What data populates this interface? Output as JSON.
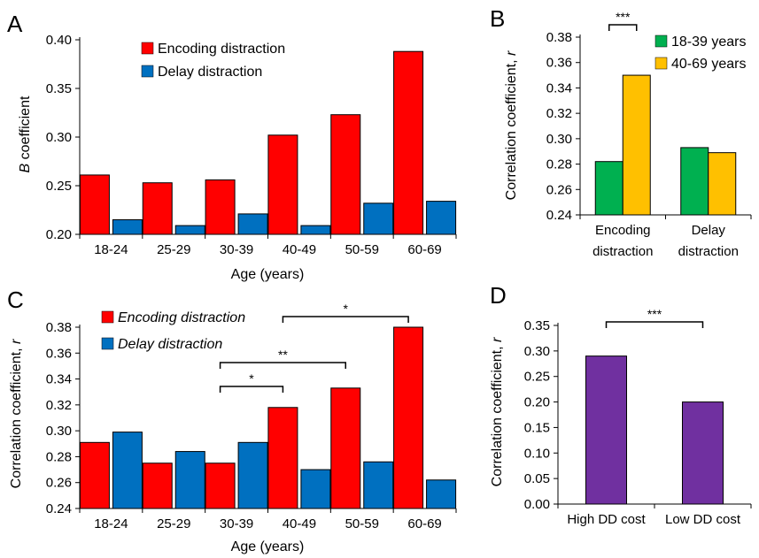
{
  "chart_data": [
    {
      "panel": "A",
      "type": "bar",
      "categories": [
        "18-24",
        "25-29",
        "30-39",
        "40-49",
        "50-59",
        "60-69"
      ],
      "series": [
        {
          "name": "Encoding distraction",
          "color": "#ff0000",
          "values": [
            0.261,
            0.253,
            0.256,
            0.302,
            0.323,
            0.388
          ]
        },
        {
          "name": "Delay distraction",
          "color": "#0070c0",
          "values": [
            0.215,
            0.209,
            0.221,
            0.209,
            0.232,
            0.234
          ]
        }
      ],
      "xlabel": "Age (years)",
      "ylabel_italic": "B",
      "ylabel_rest": " coefficient",
      "ylim": [
        0.2,
        0.4
      ],
      "yticks": [
        "0.20",
        "0.25",
        "0.30",
        "0.35",
        "0.40"
      ],
      "legend_position": "top-left",
      "legend_italic": false,
      "brackets": []
    },
    {
      "panel": "B",
      "type": "bar",
      "categories": [
        [
          "Encoding",
          "distraction"
        ],
        [
          "Delay",
          "distraction"
        ]
      ],
      "series": [
        {
          "name": "18-39 years",
          "color": "#00b050",
          "values": [
            0.282,
            0.293
          ]
        },
        {
          "name": "40-69 years",
          "color": "#ffc000",
          "values": [
            0.35,
            0.289
          ]
        }
      ],
      "xlabel": "",
      "ylabel_prefix": "Correlation coefficient, ",
      "ylabel_italic": "r",
      "ylim": [
        0.24,
        0.38
      ],
      "yticks": [
        "0.24",
        "0.26",
        "0.28",
        "0.30",
        "0.32",
        "0.34",
        "0.36",
        "0.38"
      ],
      "legend_position": "top-right",
      "legend_italic": false,
      "brackets": [
        {
          "from": [
            0,
            0
          ],
          "to": [
            0,
            1
          ],
          "label": "***"
        }
      ]
    },
    {
      "panel": "C",
      "type": "bar",
      "categories": [
        "18-24",
        "25-29",
        "30-39",
        "40-49",
        "50-59",
        "60-69"
      ],
      "series": [
        {
          "name": "Encoding distraction",
          "color": "#ff0000",
          "values": [
            0.291,
            0.275,
            0.275,
            0.318,
            0.333,
            0.38
          ]
        },
        {
          "name": "Delay distraction",
          "color": "#0070c0",
          "values": [
            0.299,
            0.284,
            0.291,
            0.27,
            0.276,
            0.262
          ]
        }
      ],
      "xlabel": "Age (years)",
      "ylabel_prefix": "Correlation coefficient, ",
      "ylabel_italic": "r",
      "ylim": [
        0.24,
        0.38
      ],
      "yticks": [
        "0.24",
        "0.26",
        "0.28",
        "0.30",
        "0.32",
        "0.34",
        "0.36",
        "0.38"
      ],
      "legend_position": "top-left",
      "legend_italic": true,
      "brackets": [
        {
          "from": [
            2,
            0
          ],
          "to": [
            3,
            0
          ],
          "label": "*"
        },
        {
          "from": [
            2,
            0
          ],
          "to": [
            4,
            0
          ],
          "label": "**"
        },
        {
          "from": [
            3,
            0
          ],
          "to": [
            5,
            0
          ],
          "label": "*"
        }
      ]
    },
    {
      "panel": "D",
      "type": "bar",
      "categories": [
        "High DD cost",
        "Low DD cost"
      ],
      "series": [
        {
          "name": "",
          "color": "#7030a0",
          "values": [
            0.29,
            0.2
          ]
        }
      ],
      "xlabel": "",
      "ylabel_prefix": "Correlation coefficient, ",
      "ylabel_italic": "r",
      "ylim": [
        0,
        0.35
      ],
      "yticks": [
        "0.00",
        "0.05",
        "0.10",
        "0.15",
        "0.20",
        "0.25",
        "0.30",
        "0.35"
      ],
      "legend_position": "none",
      "legend_italic": false,
      "brackets": [
        {
          "from": [
            0,
            0
          ],
          "to": [
            1,
            0
          ],
          "label": "***"
        }
      ]
    }
  ]
}
